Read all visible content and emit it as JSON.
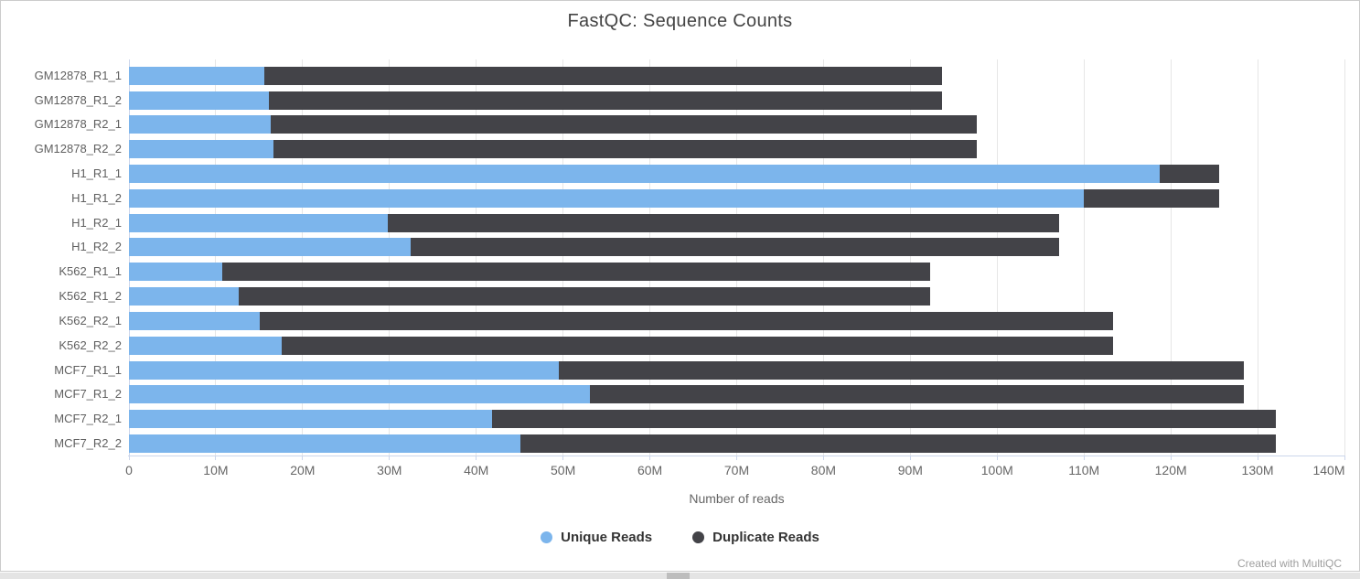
{
  "chart": {
    "title": "FastQC: Sequence Counts",
    "credit": "Created with MultiQC"
  },
  "chart_data": {
    "type": "bar",
    "orientation": "horizontal",
    "stacked": true,
    "title": "FastQC: Sequence Counts",
    "xlabel": "Number of reads",
    "ylabel": "",
    "categories": [
      "GM12878_R1_1",
      "GM12878_R1_2",
      "GM12878_R2_1",
      "GM12878_R2_2",
      "H1_R1_1",
      "H1_R1_2",
      "H1_R2_1",
      "H1_R2_2",
      "K562_R1_1",
      "K562_R1_2",
      "K562_R2_1",
      "K562_R2_2",
      "MCF7_R1_1",
      "MCF7_R1_2",
      "MCF7_R2_1",
      "MCF7_R2_2"
    ],
    "series": [
      {
        "name": "Unique Reads",
        "color": "#7cb5ec",
        "values_millions": [
          15.6,
          16.1,
          16.3,
          16.6,
          118.7,
          110.0,
          29.8,
          32.4,
          10.7,
          12.6,
          15.1,
          17.6,
          49.5,
          53.1,
          41.8,
          45.1
        ]
      },
      {
        "name": "Duplicate Reads",
        "color": "#434348",
        "values_millions": [
          78.0,
          77.5,
          81.4,
          81.1,
          6.9,
          15.6,
          77.3,
          74.7,
          81.6,
          79.7,
          98.3,
          95.8,
          78.9,
          75.3,
          90.3,
          87.0
        ]
      }
    ],
    "totals_millions": [
      93.6,
      93.6,
      97.7,
      97.7,
      125.6,
      125.6,
      107.1,
      107.1,
      92.3,
      92.3,
      113.4,
      113.4,
      128.4,
      128.4,
      132.1,
      132.1
    ],
    "x_ticks": [
      "0",
      "10M",
      "20M",
      "30M",
      "40M",
      "50M",
      "60M",
      "70M",
      "80M",
      "90M",
      "100M",
      "110M",
      "120M",
      "130M",
      "140M"
    ],
    "xlim_millions": [
      0,
      140
    ],
    "x_tick_interval_millions": 10,
    "grid": true,
    "legend_position": "bottom",
    "colors": {
      "gridline": "#e6e6e6",
      "axis_line": "#ccd6eb",
      "title_text": "#444444",
      "axis_text": "#666666",
      "category_text": "#606060",
      "legend_text": "#333333",
      "credit_text": "#9e9e9e"
    }
  }
}
